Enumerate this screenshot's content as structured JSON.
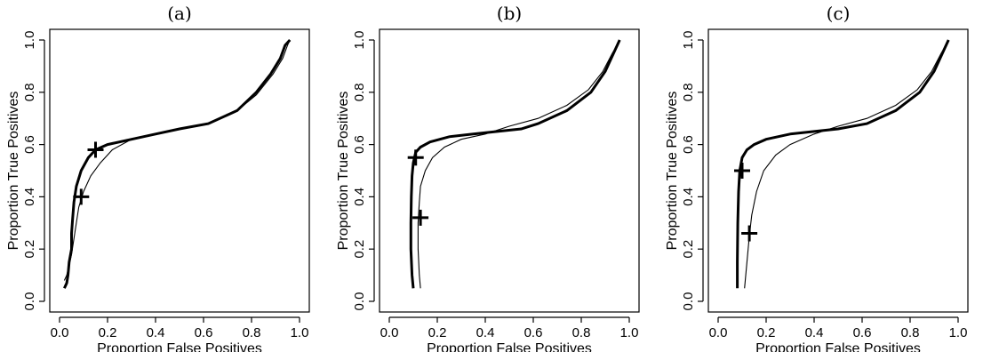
{
  "chart_data": [
    {
      "type": "line",
      "title": "(a)",
      "xlabel": "Proportion False Positives",
      "ylabel": "Proportion True Positives",
      "xlim": [
        0,
        1
      ],
      "ylim": [
        0,
        1
      ],
      "xticks": [
        "0.0",
        "0.2",
        "0.4",
        "0.6",
        "0.8",
        "1.0"
      ],
      "yticks": [
        "0.0",
        "0.2",
        "0.4",
        "0.6",
        "0.8",
        "1.0"
      ],
      "grid": false,
      "series": [
        {
          "style": "thick",
          "x": [
            0.02,
            0.03,
            0.035,
            0.04,
            0.05,
            0.05,
            0.055,
            0.06,
            0.07,
            0.09,
            0.12,
            0.15,
            0.2,
            0.3,
            0.4,
            0.5,
            0.62,
            0.74,
            0.82,
            0.88,
            0.92,
            0.94,
            0.96
          ],
          "y": [
            0.05,
            0.07,
            0.1,
            0.15,
            0.2,
            0.26,
            0.32,
            0.38,
            0.44,
            0.5,
            0.55,
            0.58,
            0.6,
            0.62,
            0.64,
            0.66,
            0.68,
            0.73,
            0.8,
            0.87,
            0.93,
            0.98,
            1.0
          ],
          "marker": [
            0.15,
            0.58
          ]
        },
        {
          "style": "thin",
          "x": [
            0.02,
            0.03,
            0.04,
            0.05,
            0.06,
            0.07,
            0.08,
            0.1,
            0.13,
            0.17,
            0.22,
            0.3,
            0.4,
            0.5,
            0.62,
            0.74,
            0.82,
            0.89,
            0.93,
            0.95,
            0.96
          ],
          "y": [
            0.08,
            0.1,
            0.14,
            0.18,
            0.24,
            0.3,
            0.36,
            0.42,
            0.48,
            0.53,
            0.58,
            0.62,
            0.64,
            0.66,
            0.68,
            0.73,
            0.79,
            0.87,
            0.93,
            0.98,
            1.0
          ],
          "marker": [
            0.09,
            0.4
          ]
        }
      ]
    },
    {
      "type": "line",
      "title": "(b)",
      "xlabel": "Proportion False Positives",
      "ylabel": "Proportion True Positives",
      "xlim": [
        0,
        1
      ],
      "ylim": [
        0,
        1
      ],
      "xticks": [
        "0.0",
        "0.2",
        "0.4",
        "0.6",
        "0.8",
        "1.0"
      ],
      "yticks": [
        "0.0",
        "0.2",
        "0.4",
        "0.6",
        "0.8",
        "1.0"
      ],
      "grid": false,
      "series": [
        {
          "style": "thick",
          "x": [
            0.1,
            0.095,
            0.09,
            0.09,
            0.092,
            0.095,
            0.1,
            0.11,
            0.13,
            0.17,
            0.25,
            0.35,
            0.45,
            0.55,
            0.62,
            0.74,
            0.84,
            0.9,
            0.94,
            0.96
          ],
          "y": [
            0.05,
            0.1,
            0.2,
            0.3,
            0.4,
            0.48,
            0.53,
            0.57,
            0.59,
            0.61,
            0.63,
            0.64,
            0.65,
            0.66,
            0.68,
            0.73,
            0.8,
            0.88,
            0.96,
            1.0
          ],
          "marker": [
            0.11,
            0.55
          ]
        },
        {
          "style": "thin",
          "x": [
            0.13,
            0.125,
            0.12,
            0.12,
            0.125,
            0.13,
            0.15,
            0.18,
            0.23,
            0.3,
            0.4,
            0.5,
            0.62,
            0.74,
            0.83,
            0.89,
            0.93,
            0.95,
            0.96
          ],
          "y": [
            0.05,
            0.1,
            0.2,
            0.3,
            0.38,
            0.44,
            0.5,
            0.55,
            0.59,
            0.62,
            0.64,
            0.67,
            0.7,
            0.75,
            0.81,
            0.88,
            0.95,
            0.98,
            1.0
          ],
          "marker": [
            0.13,
            0.32
          ]
        }
      ]
    },
    {
      "type": "line",
      "title": "(c)",
      "xlabel": "Proportion False Positives",
      "ylabel": "Proportion True Positives",
      "xlim": [
        0,
        1
      ],
      "ylim": [
        0,
        1
      ],
      "xticks": [
        "0.0",
        "0.2",
        "0.4",
        "0.6",
        "0.8",
        "1.0"
      ],
      "yticks": [
        "0.0",
        "0.2",
        "0.4",
        "0.6",
        "0.8",
        "1.0"
      ],
      "grid": false,
      "series": [
        {
          "style": "thick",
          "x": [
            0.08,
            0.08,
            0.082,
            0.085,
            0.09,
            0.1,
            0.12,
            0.15,
            0.2,
            0.3,
            0.4,
            0.5,
            0.62,
            0.74,
            0.84,
            0.9,
            0.94,
            0.96
          ],
          "y": [
            0.05,
            0.15,
            0.3,
            0.42,
            0.5,
            0.55,
            0.58,
            0.6,
            0.62,
            0.64,
            0.65,
            0.66,
            0.68,
            0.73,
            0.8,
            0.88,
            0.96,
            1.0
          ],
          "marker": [
            0.1,
            0.5
          ]
        },
        {
          "style": "thin",
          "x": [
            0.11,
            0.12,
            0.13,
            0.14,
            0.16,
            0.19,
            0.24,
            0.3,
            0.4,
            0.5,
            0.62,
            0.74,
            0.83,
            0.89,
            0.93,
            0.95,
            0.96
          ],
          "y": [
            0.05,
            0.15,
            0.25,
            0.33,
            0.42,
            0.5,
            0.56,
            0.6,
            0.64,
            0.67,
            0.7,
            0.75,
            0.81,
            0.88,
            0.95,
            0.98,
            1.0
          ],
          "marker": [
            0.13,
            0.26
          ]
        }
      ]
    }
  ]
}
